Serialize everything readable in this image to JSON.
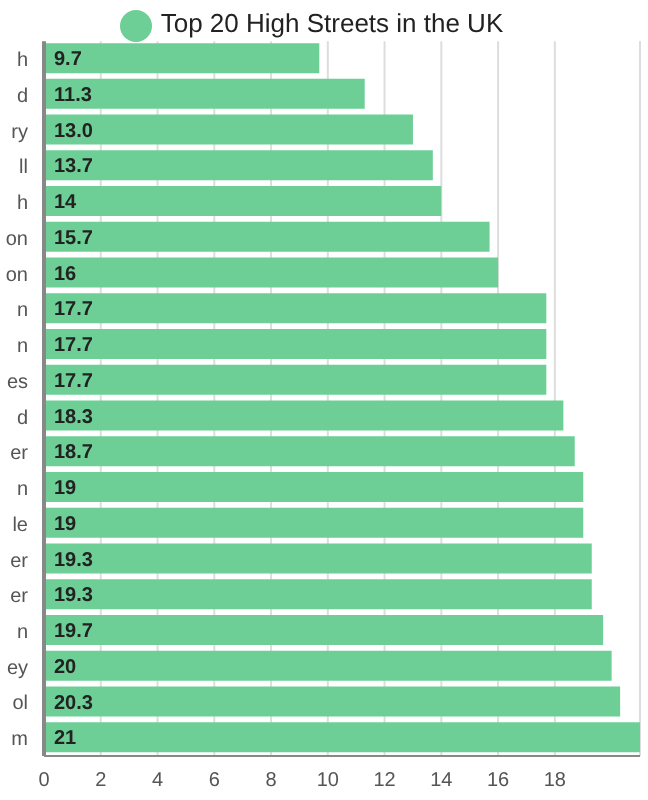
{
  "chart_data": {
    "type": "bar",
    "orientation": "horizontal",
    "categories": [
      "h",
      "d",
      "ry",
      "ll",
      "h",
      "on",
      "on",
      "n",
      "n",
      "es",
      "d",
      "er",
      "n",
      "le",
      "er",
      "er",
      "n",
      "ey",
      "ol",
      "m"
    ],
    "series": [
      {
        "name": "Top 20 High Streets in the UK",
        "color": "#6dcf96",
        "values": [
          9.7,
          11.3,
          13.0,
          13.7,
          14,
          15.7,
          16,
          17.7,
          17.7,
          17.7,
          18.3,
          18.7,
          19,
          19,
          19.3,
          19.3,
          19.7,
          20,
          20.3,
          21
        ]
      }
    ],
    "value_labels": [
      "9.7",
      "11.3",
      "13.0",
      "13.7",
      "14",
      "15.7",
      "16",
      "17.7",
      "17.7",
      "17.7",
      "18.3",
      "18.7",
      "19",
      "19",
      "19.3",
      "19.3",
      "19.7",
      "20",
      "20.3",
      "21"
    ],
    "xlim": [
      0,
      21
    ],
    "xticks": [
      0,
      2,
      4,
      6,
      8,
      10,
      12,
      14,
      16,
      18
    ],
    "grid": "x",
    "legend": "top"
  }
}
